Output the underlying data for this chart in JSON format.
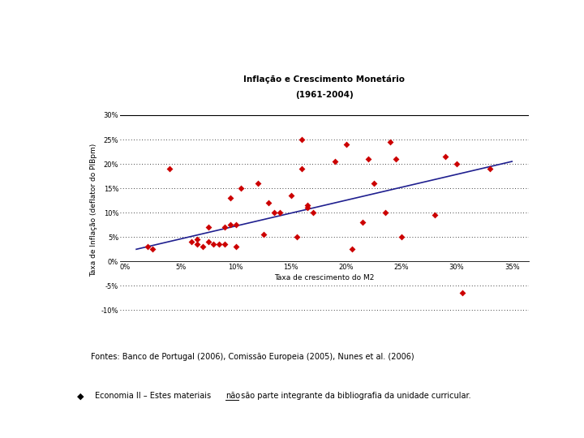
{
  "title_line1": "Inflação e Crescimento Monetário",
  "title_line2": "(1961-2004)",
  "xlabel": "Taxa de crescimento do M2",
  "ylabel": "Taxa de Inflação (deflator do PIBpm)",
  "scatter_x": [
    0.02,
    0.025,
    0.04,
    0.06,
    0.065,
    0.065,
    0.07,
    0.075,
    0.075,
    0.08,
    0.085,
    0.09,
    0.09,
    0.095,
    0.095,
    0.1,
    0.1,
    0.105,
    0.12,
    0.125,
    0.13,
    0.135,
    0.14,
    0.15,
    0.155,
    0.16,
    0.16,
    0.165,
    0.165,
    0.17,
    0.19,
    0.2,
    0.205,
    0.215,
    0.22,
    0.225,
    0.235,
    0.24,
    0.245,
    0.25,
    0.28,
    0.29,
    0.3,
    0.305,
    0.33
  ],
  "scatter_y": [
    0.03,
    0.025,
    0.19,
    0.04,
    0.045,
    0.035,
    0.03,
    0.07,
    0.04,
    0.035,
    0.035,
    0.035,
    0.07,
    0.13,
    0.075,
    0.075,
    0.03,
    0.15,
    0.16,
    0.055,
    0.12,
    0.1,
    0.1,
    0.135,
    0.05,
    0.25,
    0.19,
    0.115,
    0.11,
    0.1,
    0.205,
    0.24,
    0.025,
    0.08,
    0.21,
    0.16,
    0.1,
    0.245,
    0.21,
    0.05,
    0.095,
    0.215,
    0.2,
    -0.065,
    0.19
  ],
  "trend_x": [
    0.01,
    0.35
  ],
  "trend_y": [
    0.025,
    0.205
  ],
  "scatter_color": "#cc0000",
  "trend_color": "#1f1f8f",
  "xlim": [
    -0.005,
    0.365
  ],
  "ylim": [
    -0.115,
    0.325
  ],
  "xticks": [
    0.0,
    0.05,
    0.1,
    0.15,
    0.2,
    0.25,
    0.3,
    0.35
  ],
  "yticks": [
    -0.1,
    -0.05,
    0.0,
    0.05,
    0.1,
    0.15,
    0.2,
    0.25,
    0.3
  ],
  "dot_gridlines": [
    -0.1,
    -0.05,
    0.05,
    0.1,
    0.15,
    0.2,
    0.25
  ],
  "solid_gridline_y": 0.3,
  "bg_color": "#ffffff",
  "footnote1": "Fontes: Banco de Portugal (2006), Comissão Europeia (2005), Nunes et al. (2006)",
  "footnote2_before": "Economia II – Estes materiais ",
  "footnote2_underline": "não",
  "footnote2_after": " são parte integrante da bibliografia da unidade curricular.",
  "marker_size": 4,
  "title_fontsize": 7.5,
  "axis_label_fontsize": 6.5,
  "tick_fontsize": 6,
  "footnote_fontsize": 7,
  "bullet_fontsize": 8
}
